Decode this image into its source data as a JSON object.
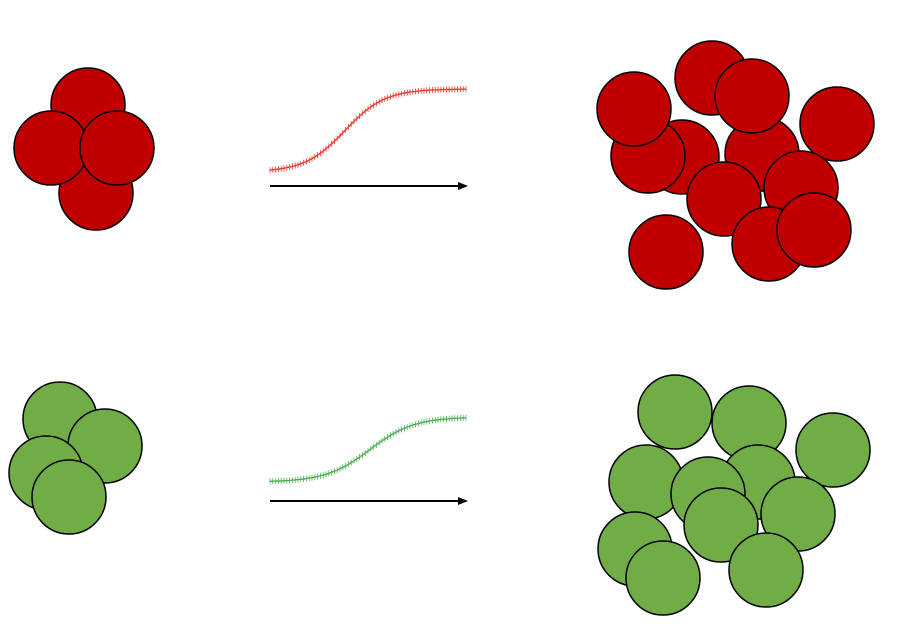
{
  "colors": {
    "red_fill": "#c00000",
    "green_fill": "#70ad47",
    "outline": "#000000",
    "red_curve": "#e8392f",
    "green_curve": "#4caf50",
    "arrow": "#000000"
  },
  "rows": [
    {
      "name": "red",
      "start_cluster": {
        "cells": 4
      },
      "end_cluster": {
        "cells": 13
      },
      "curve": {
        "shape": "sigmoid",
        "error_bars": true
      }
    },
    {
      "name": "green",
      "start_cluster": {
        "cells": 4
      },
      "end_cluster": {
        "cells": 12
      },
      "curve": {
        "shape": "sigmoid",
        "error_bars": true
      }
    }
  ]
}
